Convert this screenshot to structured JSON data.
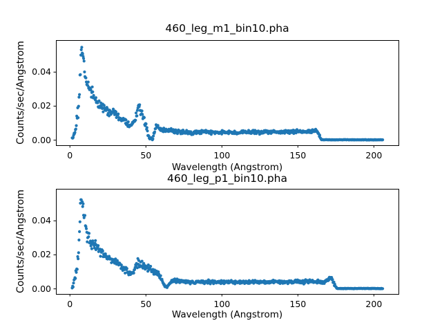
{
  "figure": {
    "background": "#ffffff",
    "text_color": "#000000"
  },
  "chart_data": [
    {
      "type": "scatter",
      "title": "460_leg_m1_bin10.pha",
      "xlabel": "Wavelength (Angstrom)",
      "ylabel": "Counts/sec/Angstrom",
      "marker_color": "#1f77b4",
      "grid": false,
      "legend": null,
      "xlim": [
        -9.2,
        216.2
      ],
      "ylim": [
        -0.003,
        0.0588
      ],
      "xticks": [
        0,
        50,
        100,
        150,
        200
      ],
      "xtick_labels": [
        "0",
        "50",
        "100",
        "150",
        "200"
      ],
      "yticks": [
        0,
        0.02,
        0.04
      ],
      "ytick_labels": [
        "0.00",
        "0.02",
        "0.04"
      ],
      "x_start": 1.5,
      "x_end": 206,
      "x_step": 0.3,
      "envelope_columns": [
        "wavelength_angstrom",
        "counts_per_sec_per_angstrom",
        "scatter_halfwidth"
      ],
      "envelope": [
        [
          1.5,
          0.0008,
          0.0006
        ],
        [
          2.2,
          0.002,
          0.001
        ],
        [
          3,
          0.004,
          0.0015
        ],
        [
          3.8,
          0.007,
          0.002
        ],
        [
          4.5,
          0.011,
          0.0025
        ],
        [
          5.2,
          0.016,
          0.003
        ],
        [
          5.8,
          0.019,
          0.0035
        ],
        [
          6.3,
          0.027,
          0.005
        ],
        [
          6.8,
          0.042,
          0.006
        ],
        [
          7.3,
          0.052,
          0.002
        ],
        [
          7.8,
          0.054,
          0.0015
        ],
        [
          8.3,
          0.051,
          0.002
        ],
        [
          9,
          0.046,
          0.003
        ],
        [
          9.8,
          0.041,
          0.003
        ],
        [
          10.5,
          0.036,
          0.0035
        ],
        [
          11.3,
          0.032,
          0.003
        ],
        [
          12.2,
          0.031,
          0.003
        ],
        [
          13.2,
          0.0295,
          0.0028
        ],
        [
          14.5,
          0.028,
          0.0026
        ],
        [
          16,
          0.0255,
          0.0024
        ],
        [
          17.5,
          0.023,
          0.0022
        ],
        [
          19,
          0.021,
          0.002
        ],
        [
          20.5,
          0.0195,
          0.002
        ],
        [
          22,
          0.0185,
          0.002
        ],
        [
          23.5,
          0.0195,
          0.002
        ],
        [
          25,
          0.0165,
          0.0018
        ],
        [
          26.5,
          0.016,
          0.0018
        ],
        [
          28,
          0.017,
          0.0018
        ],
        [
          29.5,
          0.016,
          0.0017
        ],
        [
          31,
          0.0145,
          0.0017
        ],
        [
          32.5,
          0.0135,
          0.0016
        ],
        [
          34,
          0.0125,
          0.0016
        ],
        [
          35.5,
          0.0115,
          0.0015
        ],
        [
          37,
          0.0105,
          0.0015
        ],
        [
          38.5,
          0.009,
          0.0014
        ],
        [
          40,
          0.008,
          0.0013
        ],
        [
          41.5,
          0.0095,
          0.0015
        ],
        [
          43,
          0.013,
          0.0018
        ],
        [
          44.3,
          0.017,
          0.0028
        ],
        [
          45.3,
          0.0195,
          0.0028
        ],
        [
          46.3,
          0.017,
          0.002
        ],
        [
          47.5,
          0.0145,
          0.002
        ],
        [
          49,
          0.012,
          0.0018
        ],
        [
          50.5,
          0.008,
          0.0016
        ],
        [
          51.5,
          0.003,
          0.0012
        ],
        [
          52.5,
          0.0008,
          0.0005
        ],
        [
          54.5,
          0.0008,
          0.0005
        ],
        [
          55.5,
          0.004,
          0.0015
        ],
        [
          56.5,
          0.0095,
          0.002
        ],
        [
          57.5,
          0.0095,
          0.0018
        ],
        [
          58.5,
          0.007,
          0.0014
        ],
        [
          60,
          0.006,
          0.0012
        ],
        [
          63,
          0.0058,
          0.0011
        ],
        [
          65.5,
          0.0062,
          0.0011
        ],
        [
          68,
          0.0055,
          0.001
        ],
        [
          71,
          0.005,
          0.001
        ],
        [
          75,
          0.0046,
          0.001
        ],
        [
          80,
          0.0042,
          0.0009
        ],
        [
          85,
          0.0046,
          0.0009
        ],
        [
          90,
          0.005,
          0.0009
        ],
        [
          95,
          0.0043,
          0.0009
        ],
        [
          100,
          0.0046,
          0.0009
        ],
        [
          105,
          0.0049,
          0.0009
        ],
        [
          110,
          0.0043,
          0.0009
        ],
        [
          115,
          0.0046,
          0.0009
        ],
        [
          120,
          0.0048,
          0.0009
        ],
        [
          125,
          0.0044,
          0.0009
        ],
        [
          130,
          0.005,
          0.0009
        ],
        [
          135,
          0.0052,
          0.0009
        ],
        [
          140,
          0.0047,
          0.0009
        ],
        [
          145,
          0.005,
          0.0009
        ],
        [
          150,
          0.0052,
          0.001
        ],
        [
          154,
          0.0048,
          0.001
        ],
        [
          158,
          0.0055,
          0.001
        ],
        [
          161,
          0.0058,
          0.001
        ],
        [
          163,
          0.005,
          0.001
        ],
        [
          164.3,
          0.0025,
          0.0008
        ],
        [
          165.3,
          0.0006,
          0.0003
        ],
        [
          166.5,
          0.0002,
          0.00012
        ],
        [
          206,
          0.0002,
          0.00012
        ]
      ]
    },
    {
      "type": "scatter",
      "title": "460_leg_p1_bin10.pha",
      "xlabel": "Wavelength (Angstrom)",
      "ylabel": "Counts/sec/Angstrom",
      "marker_color": "#1f77b4",
      "grid": false,
      "legend": null,
      "xlim": [
        -9.2,
        216.2
      ],
      "ylim": [
        -0.003,
        0.0588
      ],
      "xticks": [
        0,
        50,
        100,
        150,
        200
      ],
      "xtick_labels": [
        "0",
        "50",
        "100",
        "150",
        "200"
      ],
      "yticks": [
        0,
        0.02,
        0.04
      ],
      "ytick_labels": [
        "0.00",
        "0.02",
        "0.04"
      ],
      "x_start": 1.5,
      "x_end": 206,
      "x_step": 0.3,
      "envelope_columns": [
        "wavelength_angstrom",
        "counts_per_sec_per_angstrom",
        "scatter_halfwidth"
      ],
      "envelope": [
        [
          1.5,
          0.0008,
          0.0006
        ],
        [
          2.2,
          0.002,
          0.001
        ],
        [
          3,
          0.005,
          0.0016
        ],
        [
          3.8,
          0.009,
          0.0022
        ],
        [
          4.6,
          0.014,
          0.003
        ],
        [
          5.3,
          0.018,
          0.0035
        ],
        [
          6,
          0.024,
          0.005
        ],
        [
          6.6,
          0.04,
          0.006
        ],
        [
          7.2,
          0.051,
          0.002
        ],
        [
          7.7,
          0.0535,
          0.0015
        ],
        [
          8.3,
          0.05,
          0.002
        ],
        [
          9,
          0.045,
          0.003
        ],
        [
          9.8,
          0.04,
          0.003
        ],
        [
          10.6,
          0.035,
          0.003
        ],
        [
          11.5,
          0.031,
          0.003
        ],
        [
          12.5,
          0.029,
          0.0028
        ],
        [
          13.8,
          0.0275,
          0.0028
        ],
        [
          15.2,
          0.0265,
          0.0026
        ],
        [
          16.8,
          0.025,
          0.0024
        ],
        [
          18.4,
          0.0235,
          0.0022
        ],
        [
          20,
          0.022,
          0.0021
        ],
        [
          21.6,
          0.0205,
          0.002
        ],
        [
          23.2,
          0.0195,
          0.002
        ],
        [
          25,
          0.0185,
          0.0019
        ],
        [
          27,
          0.0172,
          0.0018
        ],
        [
          29,
          0.016,
          0.0017
        ],
        [
          31,
          0.0148,
          0.0017
        ],
        [
          33,
          0.0136,
          0.0016
        ],
        [
          35,
          0.0122,
          0.0015
        ],
        [
          37,
          0.011,
          0.0015
        ],
        [
          39,
          0.0095,
          0.0014
        ],
        [
          40.5,
          0.0085,
          0.0013
        ],
        [
          42,
          0.0105,
          0.0016
        ],
        [
          43.5,
          0.0138,
          0.002
        ],
        [
          45,
          0.0155,
          0.0022
        ],
        [
          46.5,
          0.0148,
          0.002
        ],
        [
          48,
          0.0138,
          0.0019
        ],
        [
          50,
          0.0128,
          0.0018
        ],
        [
          52,
          0.0118,
          0.0017
        ],
        [
          54,
          0.0108,
          0.0016
        ],
        [
          56,
          0.0098,
          0.0015
        ],
        [
          58,
          0.0085,
          0.0014
        ],
        [
          59.8,
          0.0065,
          0.0012
        ],
        [
          61.2,
          0.0035,
          0.001
        ],
        [
          62.5,
          0.0013,
          0.0006
        ],
        [
          64,
          0.0013,
          0.0006
        ],
        [
          65.5,
          0.003,
          0.0009
        ],
        [
          67,
          0.0046,
          0.001
        ],
        [
          69,
          0.005,
          0.001
        ],
        [
          72,
          0.0045,
          0.0009
        ],
        [
          76,
          0.004,
          0.0009
        ],
        [
          80,
          0.0038,
          0.0008
        ],
        [
          85,
          0.0041,
          0.0008
        ],
        [
          90,
          0.0043,
          0.0008
        ],
        [
          95,
          0.0038,
          0.0008
        ],
        [
          100,
          0.004,
          0.0008
        ],
        [
          105,
          0.0042,
          0.0008
        ],
        [
          110,
          0.0038,
          0.0008
        ],
        [
          115,
          0.004,
          0.0008
        ],
        [
          120,
          0.0044,
          0.0008
        ],
        [
          125,
          0.004,
          0.0008
        ],
        [
          130,
          0.0042,
          0.0008
        ],
        [
          135,
          0.0045,
          0.0008
        ],
        [
          140,
          0.004,
          0.0008
        ],
        [
          145,
          0.0042,
          0.0009
        ],
        [
          150,
          0.0046,
          0.0009
        ],
        [
          154,
          0.004,
          0.0009
        ],
        [
          158,
          0.0046,
          0.0009
        ],
        [
          162,
          0.004,
          0.0009
        ],
        [
          165,
          0.0044,
          0.0009
        ],
        [
          168,
          0.0042,
          0.0009
        ],
        [
          170.5,
          0.0055,
          0.001
        ],
        [
          172,
          0.0065,
          0.0012
        ],
        [
          173.5,
          0.004,
          0.001
        ],
        [
          174.8,
          0.0012,
          0.0005
        ],
        [
          176,
          0.0002,
          0.00012
        ],
        [
          206,
          0.0002,
          0.00012
        ]
      ]
    }
  ]
}
